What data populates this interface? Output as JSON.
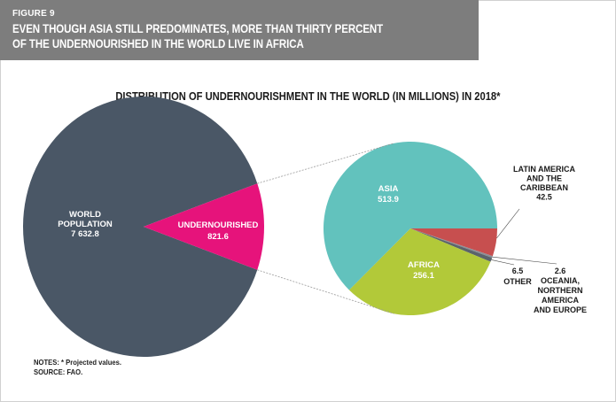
{
  "header": {
    "figure_label": "FIGURE 9",
    "title_line1": "EVEN THOUGH ASIA STILL PREDOMINATES, MORE THAN THIRTY PERCENT",
    "title_line2": "OF THE UNDERNOURISHED IN THE WORLD LIVE IN AFRICA",
    "background": "#7d7d7d"
  },
  "chart_title": "DISTRIBUTION OF UNDERNOURISHMENT IN THE WORLD (IN MILLIONS) IN 2018*",
  "chart_data": [
    {
      "type": "pie",
      "title": "",
      "slices": [
        {
          "label_lines": [
            "WORLD",
            "POPULATION"
          ],
          "value": 7632.8,
          "value_text": "7 632.8",
          "color": "#4a5766"
        },
        {
          "label_lines": [
            "UNDERNOURISHED"
          ],
          "value": 821.6,
          "value_text": "821.6",
          "color": "#e6137b"
        }
      ]
    },
    {
      "type": "pie",
      "title": "",
      "slices": [
        {
          "label_lines": [
            "ASIA"
          ],
          "value": 513.9,
          "value_text": "513.9",
          "color": "#62c2bd"
        },
        {
          "label_lines": [
            "LATIN AMERICA",
            "AND THE",
            "CARIBBEAN"
          ],
          "value": 42.5,
          "value_text": "42.5",
          "color": "#c74f4f"
        },
        {
          "label_lines": [
            "OCEANIA,",
            "NORTHERN",
            "AMERICA",
            "AND EUROPE"
          ],
          "value": 2.6,
          "value_text": "2.6",
          "color": "#8a8f96"
        },
        {
          "label_lines": [
            "OTHER"
          ],
          "value": 6.5,
          "value_text": "6.5",
          "color": "#5b636b"
        },
        {
          "label_lines": [
            "AFRICA"
          ],
          "value": 256.1,
          "value_text": "256.1",
          "color": "#b2c939"
        }
      ]
    }
  ],
  "notes": {
    "line1": "NOTES: * Projected values.",
    "line2": "SOURCE: FAO."
  }
}
